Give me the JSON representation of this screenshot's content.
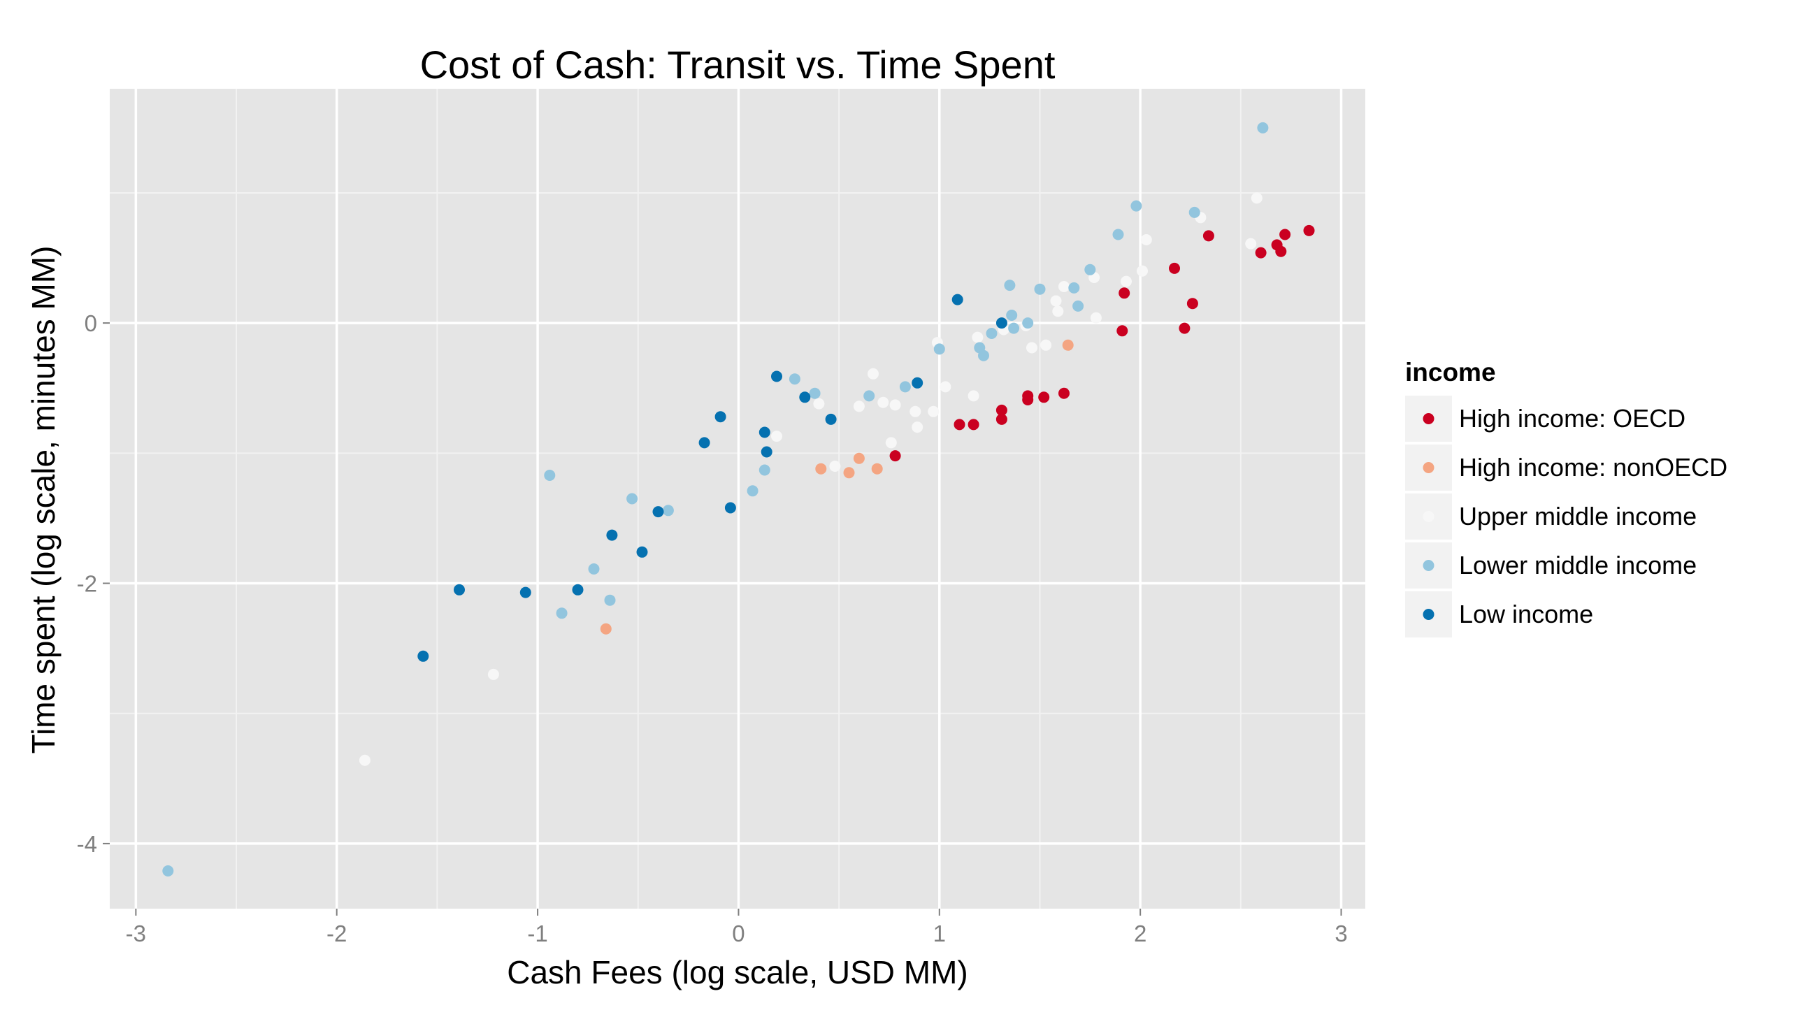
{
  "chart_data": {
    "type": "scatter",
    "title": "Cost of Cash: Transit vs. Time Spent",
    "xlabel": "Cash Fees (log scale, USD MM)",
    "ylabel": "Time spent (log scale, minutes MM)",
    "xlim": [
      -3.13,
      3.12
    ],
    "ylim": [
      -4.5,
      1.8
    ],
    "x_ticks": [
      -3,
      -2,
      -1,
      0,
      1,
      2,
      3
    ],
    "y_ticks": [
      -4,
      -2,
      0
    ],
    "grid": true,
    "legend": {
      "title": "income",
      "placement": "right",
      "entries": [
        {
          "label": "High income: OECD",
          "color": "#CA0020"
        },
        {
          "label": "High income: nonOECD",
          "color": "#F4A582"
        },
        {
          "label": "Upper middle income",
          "color": "#F7F7F7"
        },
        {
          "label": "Lower middle income",
          "color": "#92C5DE"
        },
        {
          "label": "Low income",
          "color": "#0571B0"
        }
      ]
    },
    "series": [
      {
        "name": "High income: OECD",
        "color": "#CA0020",
        "points": [
          [
            0.78,
            -1.02
          ],
          [
            1.1,
            -0.78
          ],
          [
            1.17,
            -0.78
          ],
          [
            1.31,
            -0.67
          ],
          [
            1.31,
            -0.74
          ],
          [
            1.44,
            -0.56
          ],
          [
            1.44,
            -0.59
          ],
          [
            1.52,
            -0.57
          ],
          [
            1.62,
            -0.54
          ],
          [
            1.91,
            -0.06
          ],
          [
            1.92,
            0.23
          ],
          [
            2.17,
            0.42
          ],
          [
            2.22,
            -0.04
          ],
          [
            2.26,
            0.15
          ],
          [
            2.34,
            0.67
          ],
          [
            2.6,
            0.54
          ],
          [
            2.68,
            0.6
          ],
          [
            2.7,
            0.55
          ],
          [
            2.72,
            0.68
          ],
          [
            2.84,
            0.71
          ]
        ]
      },
      {
        "name": "High income: nonOECD",
        "color": "#F4A582",
        "points": [
          [
            -0.66,
            -2.35
          ],
          [
            0.41,
            -1.12
          ],
          [
            0.55,
            -1.15
          ],
          [
            0.6,
            -1.04
          ],
          [
            0.69,
            -1.12
          ],
          [
            1.64,
            -0.17
          ]
        ]
      },
      {
        "name": "Upper middle income",
        "color": "#F7F7F7",
        "points": [
          [
            -1.86,
            -3.36
          ],
          [
            -1.22,
            -2.7
          ],
          [
            0.19,
            -0.87
          ],
          [
            0.4,
            -0.62
          ],
          [
            0.48,
            -1.1
          ],
          [
            0.6,
            -0.64
          ],
          [
            0.67,
            -0.39
          ],
          [
            0.72,
            -0.61
          ],
          [
            0.76,
            -0.92
          ],
          [
            0.78,
            -0.63
          ],
          [
            0.88,
            -0.68
          ],
          [
            0.89,
            -0.8
          ],
          [
            0.97,
            -0.68
          ],
          [
            0.99,
            -0.15
          ],
          [
            1.03,
            -0.49
          ],
          [
            1.17,
            -0.56
          ],
          [
            1.19,
            -0.11
          ],
          [
            1.32,
            -0.05
          ],
          [
            1.43,
            -0.02
          ],
          [
            1.46,
            -0.19
          ],
          [
            1.53,
            -0.17
          ],
          [
            1.58,
            0.17
          ],
          [
            1.59,
            0.09
          ],
          [
            1.62,
            0.28
          ],
          [
            1.77,
            0.35
          ],
          [
            1.78,
            0.04
          ],
          [
            1.93,
            0.32
          ],
          [
            2.01,
            0.4
          ],
          [
            2.03,
            0.64
          ],
          [
            2.3,
            0.81
          ],
          [
            2.55,
            0.61
          ],
          [
            2.58,
            0.96
          ]
        ]
      },
      {
        "name": "Lower middle income",
        "color": "#92C5DE",
        "points": [
          [
            -2.84,
            -4.21
          ],
          [
            -0.94,
            -1.17
          ],
          [
            -0.88,
            -2.23
          ],
          [
            -0.72,
            -1.89
          ],
          [
            -0.64,
            -2.13
          ],
          [
            -0.53,
            -1.35
          ],
          [
            -0.35,
            -1.44
          ],
          [
            0.07,
            -1.29
          ],
          [
            0.13,
            -1.13
          ],
          [
            0.28,
            -0.43
          ],
          [
            0.38,
            -0.54
          ],
          [
            0.65,
            -0.56
          ],
          [
            0.83,
            -0.49
          ],
          [
            1.0,
            -0.2
          ],
          [
            1.2,
            -0.19
          ],
          [
            1.22,
            -0.25
          ],
          [
            1.26,
            -0.08
          ],
          [
            1.35,
            0.29
          ],
          [
            1.36,
            0.06
          ],
          [
            1.37,
            -0.04
          ],
          [
            1.44,
            0.0
          ],
          [
            1.5,
            0.26
          ],
          [
            1.67,
            0.27
          ],
          [
            1.69,
            0.13
          ],
          [
            1.75,
            0.41
          ],
          [
            1.89,
            0.68
          ],
          [
            1.98,
            0.9
          ],
          [
            2.27,
            0.85
          ],
          [
            2.61,
            1.5
          ]
        ]
      },
      {
        "name": "Low income",
        "color": "#0571B0",
        "points": [
          [
            -1.57,
            -2.56
          ],
          [
            -1.39,
            -2.05
          ],
          [
            -1.06,
            -2.07
          ],
          [
            -0.8,
            -2.05
          ],
          [
            -0.63,
            -1.63
          ],
          [
            -0.48,
            -1.76
          ],
          [
            -0.4,
            -1.45
          ],
          [
            -0.17,
            -0.92
          ],
          [
            -0.09,
            -0.72
          ],
          [
            -0.04,
            -1.42
          ],
          [
            0.13,
            -0.84
          ],
          [
            0.14,
            -0.99
          ],
          [
            0.19,
            -0.41
          ],
          [
            0.33,
            -0.57
          ],
          [
            0.46,
            -0.74
          ],
          [
            0.89,
            -0.46
          ],
          [
            1.09,
            0.18
          ],
          [
            1.31,
            0.0
          ]
        ]
      }
    ]
  }
}
